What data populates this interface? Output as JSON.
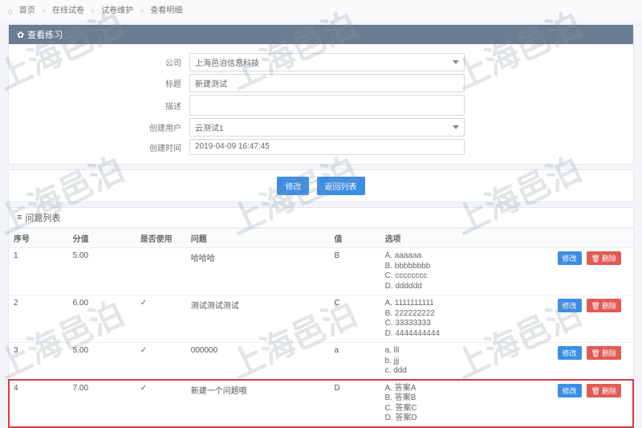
{
  "watermark": "上海邑泊",
  "breadcrumb": {
    "home": "首页",
    "items": [
      "在线试卷",
      "试卷维护",
      "查看明细"
    ]
  },
  "panel1": {
    "title": "查看练习",
    "fields": {
      "company": {
        "label": "公司",
        "value": "上海邑泊信息科技",
        "type": "select"
      },
      "title": {
        "label": "标题",
        "value": "新建测试"
      },
      "desc": {
        "label": "描述",
        "value": ""
      },
      "creator": {
        "label": "创建用户",
        "value": "云测试1",
        "type": "select"
      },
      "created": {
        "label": "创建时间",
        "value": "2019-04-09 16:47:45"
      }
    },
    "buttons": {
      "edit": "修改",
      "back": "返回列表"
    }
  },
  "panel2": {
    "title": "问题列表",
    "headers": {
      "idx": "序号",
      "score": "分值",
      "used": "是否使用",
      "question": "问题",
      "value": "值",
      "options": "选项"
    },
    "row_actions": {
      "edit": "修改",
      "del": "删除"
    },
    "rows": [
      {
        "idx": "1",
        "score": "5.00",
        "used": "",
        "question": "哈哈哈",
        "value": "B",
        "options": [
          "A. aaaaaa",
          "B. bbbbbbbb",
          "C. cccccccc",
          "D. dddddd"
        ],
        "hl": false
      },
      {
        "idx": "2",
        "score": "6.00",
        "used": "✓",
        "question": "测试测试测试",
        "value": "C",
        "options": [
          "A. 1111111111",
          "B. 222222222",
          "C. 33333333",
          "D. 4444444444"
        ],
        "hl": false
      },
      {
        "idx": "3",
        "score": "5.00",
        "used": "✓",
        "question": "000000",
        "value": "a",
        "options": [
          "a. lll",
          "b. jjj",
          "c. ddd"
        ],
        "hl": false
      },
      {
        "idx": "4",
        "score": "7.00",
        "used": "✓",
        "question": "新建一个问题哦",
        "value": "D",
        "options": [
          "A. 答案A",
          "B. 答案B",
          "C. 答案C",
          "D. 答案D"
        ],
        "hl": true
      }
    ]
  }
}
